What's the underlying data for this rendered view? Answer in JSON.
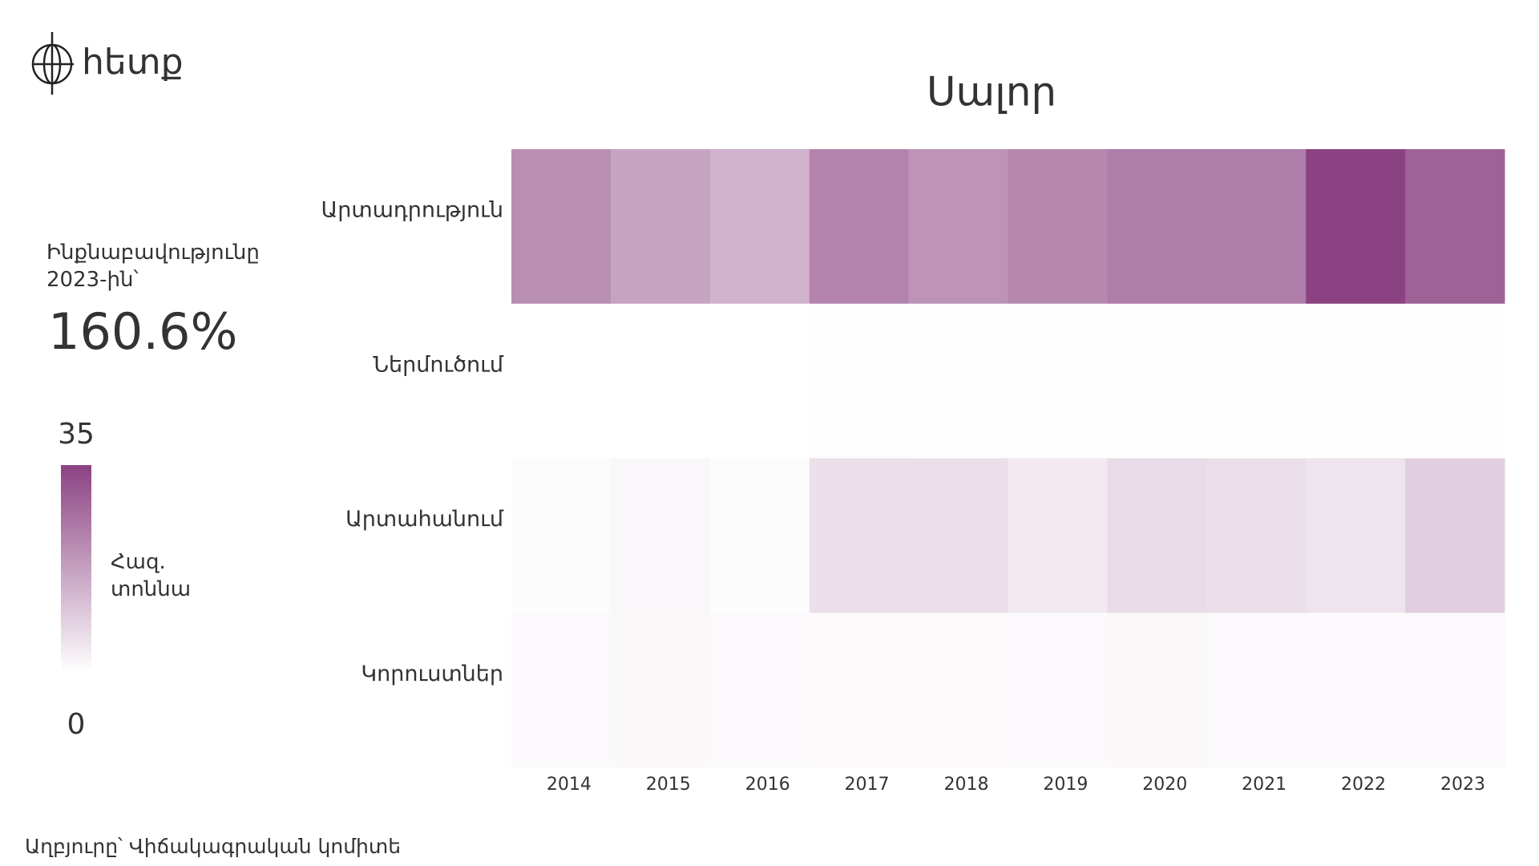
{
  "logo": "հետք",
  "kpi": {
    "label": "Ինքնաբավությունը 2023-ին՝",
    "value": "160.6%"
  },
  "source": "Աղբյուրը՝ Վիճակագրական կոմիտե",
  "chart_data": {
    "type": "heatmap",
    "title": "Սալոր",
    "x": [
      "2014",
      "2015",
      "2016",
      "2017",
      "2018",
      "2019",
      "2020",
      "2021",
      "2022",
      "2023"
    ],
    "categories": [
      "Արտադրություն",
      "Ներմուծում",
      "Արտահանում",
      "Կորուստներ"
    ],
    "series": [
      {
        "name": "Արտադրություն",
        "values": [
          21,
          17,
          14,
          23,
          20,
          22,
          24,
          24,
          35,
          29
        ]
      },
      {
        "name": "Ներմուծում",
        "values": [
          0,
          0,
          0,
          0.3,
          0.2,
          0.3,
          0.4,
          0.1,
          0.2,
          0.3
        ]
      },
      {
        "name": "Արտահանում",
        "values": [
          0.5,
          1.5,
          0.5,
          6,
          6,
          4,
          6.5,
          6,
          5,
          9
        ]
      },
      {
        "name": "Կորուստներ",
        "values": [
          1.2,
          1.3,
          1.2,
          1,
          1,
          1.2,
          1.3,
          1.1,
          1.2,
          1.1
        ]
      }
    ],
    "color": "#8b4282",
    "clim": [
      0,
      35
    ],
    "cticks": [
      0,
      35
    ],
    "colorbar_label": "Հազ. տոննա"
  }
}
